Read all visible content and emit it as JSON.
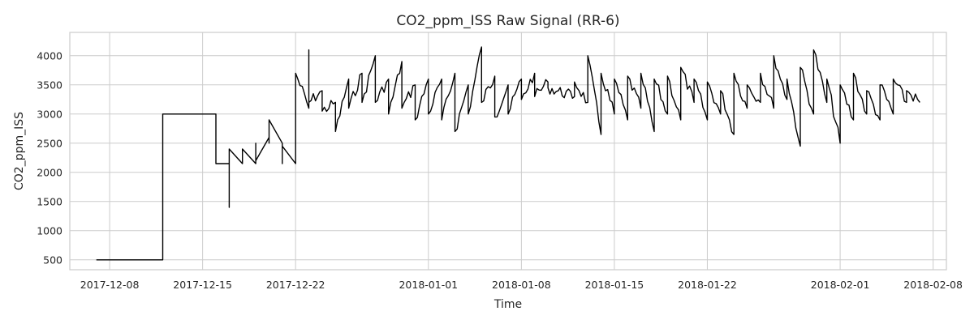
{
  "chart_data": {
    "type": "line",
    "title": "CO2_ppm_ISS Raw Signal (RR-6)",
    "xlabel": "Time",
    "ylabel": "CO2_ppm_ISS",
    "x_type": "date",
    "xlim": [
      "2017-12-05",
      "2018-02-09"
    ],
    "ylim": [
      330,
      4400
    ],
    "x_ticks": [
      "2017-12-08",
      "2017-12-15",
      "2017-12-22",
      "2018-01-01",
      "2018-01-08",
      "2018-01-15",
      "2018-01-22",
      "2018-02-01",
      "2018-02-08"
    ],
    "y_ticks": [
      500,
      1000,
      1500,
      2000,
      2500,
      3000,
      3500,
      4000
    ],
    "grid": true,
    "legend": "none",
    "colors": {
      "line": "#000000",
      "grid": "#cccccc",
      "background": "#ffffff"
    },
    "series": [
      {
        "x": [
          "2017-12-07",
          "2017-12-12",
          "2017-12-12",
          "2017-12-16",
          "2017-12-16",
          "2017-12-16",
          "2017-12-16",
          "2017-12-17",
          "2017-12-17",
          "2017-12-17",
          "2017-12-17",
          "2017-12-18",
          "2017-12-18",
          "2017-12-19",
          "2017-12-19",
          "2017-12-19",
          "2017-12-20",
          "2017-12-20",
          "2017-12-20",
          "2017-12-21",
          "2017-12-21",
          "2017-12-21",
          "2017-12-22",
          "2017-12-22",
          "2017-12-22",
          "2017-12-22",
          "2017-12-23",
          "2017-12-23",
          "2017-12-23",
          "2017-12-24",
          "2017-12-24",
          "2017-12-25",
          "2017-12-25",
          "2017-12-26",
          "2017-12-26",
          "2017-12-27",
          "2017-12-27",
          "2017-12-28",
          "2017-12-28",
          "2017-12-29",
          "2017-12-29",
          "2017-12-30",
          "2017-12-30",
          "2017-12-31",
          "2017-12-31",
          "2018-01-01",
          "2018-01-01",
          "2018-01-02",
          "2018-01-02",
          "2018-01-03",
          "2018-01-03",
          "2018-01-04",
          "2018-01-04",
          "2018-01-05",
          "2018-01-05",
          "2018-01-06",
          "2018-01-06",
          "2018-01-07",
          "2018-01-07",
          "2018-01-08",
          "2018-01-08",
          "2018-01-09",
          "2018-01-09",
          "2018-01-10",
          "2018-01-10",
          "2018-01-10",
          "2018-01-12",
          "2018-01-12",
          "2018-01-13",
          "2018-01-13",
          "2018-01-14",
          "2018-01-14",
          "2018-01-15",
          "2018-01-15",
          "2018-01-16",
          "2018-01-16",
          "2018-01-17",
          "2018-01-17",
          "2018-01-18",
          "2018-01-18",
          "2018-01-19",
          "2018-01-19",
          "2018-01-20",
          "2018-01-20",
          "2018-01-21",
          "2018-01-21",
          "2018-01-22",
          "2018-01-22",
          "2018-01-23",
          "2018-01-23",
          "2018-01-24",
          "2018-01-24",
          "2018-01-25",
          "2018-01-25",
          "2018-01-26",
          "2018-01-26",
          "2018-01-27",
          "2018-01-27",
          "2018-01-28",
          "2018-01-28",
          "2018-01-29",
          "2018-01-29",
          "2018-01-30",
          "2018-01-30",
          "2018-01-31",
          "2018-01-31",
          "2018-02-01",
          "2018-02-01",
          "2018-02-02",
          "2018-02-02",
          "2018-02-03",
          "2018-02-03",
          "2018-02-04",
          "2018-02-04",
          "2018-02-05",
          "2018-02-05",
          "2018-02-06",
          "2018-02-06",
          "2018-02-07"
        ],
        "y": [
          500,
          500,
          3000,
          3000,
          2150,
          2500,
          2150,
          2150,
          1400,
          2150,
          2400,
          2150,
          2400,
          2150,
          2500,
          2200,
          2600,
          2500,
          2900,
          2500,
          2150,
          2450,
          2150,
          3500,
          3400,
          3700,
          3100,
          4100,
          3200,
          3400,
          3050,
          3200,
          2700,
          3600,
          3100,
          3700,
          3200,
          4000,
          3200,
          3600,
          3000,
          3900,
          3100,
          3500,
          2900,
          3600,
          3000,
          3600,
          2900,
          3700,
          2700,
          3500,
          3000,
          4150,
          3200,
          3650,
          2950,
          3500,
          3000,
          3600,
          3250,
          3700,
          3300,
          3550,
          3500,
          3450,
          3300,
          3550,
          3200,
          4000,
          2650,
          3700,
          3000,
          3600,
          2900,
          3650,
          3100,
          3700,
          2700,
          3600,
          3000,
          3650,
          2900,
          3800,
          3200,
          3600,
          2900,
          3550,
          3000,
          3400,
          2650,
          3700,
          3100,
          3500,
          3200,
          3700,
          3100,
          4000,
          3250,
          3600,
          2450,
          3800,
          3000,
          4100,
          3200,
          3600,
          2500,
          3500,
          2900,
          3700,
          3000,
          3400,
          2900,
          3500,
          3000,
          3600,
          3200,
          3400,
          3200
        ]
      }
    ]
  }
}
